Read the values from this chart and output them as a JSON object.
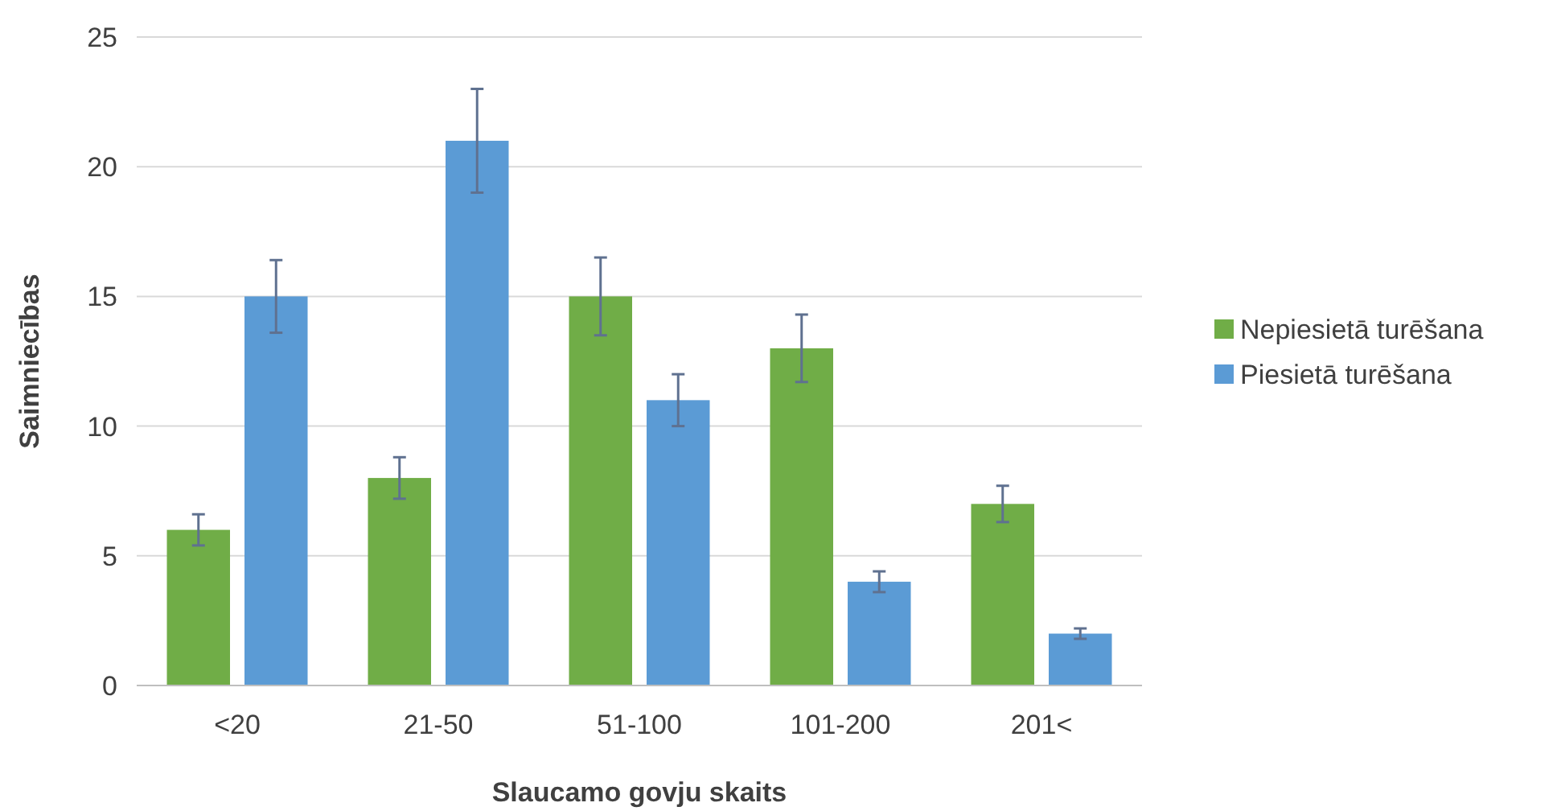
{
  "chart_data": {
    "type": "bar",
    "xlabel": "Slaucamo govju skaits",
    "ylabel": "Saimniecības",
    "categories": [
      "<20",
      "21-50",
      "51-100",
      "101-200",
      "201<"
    ],
    "series": [
      {
        "name": "Nepiesietā turēšana",
        "color": "#70ad47",
        "values": [
          6,
          8,
          15,
          13,
          7
        ],
        "errors": [
          0.6,
          0.8,
          1.5,
          1.3,
          0.7
        ]
      },
      {
        "name": "Piesietā turēšana",
        "color": "#5b9bd5",
        "values": [
          15,
          21,
          11,
          4,
          2
        ],
        "errors": [
          1.4,
          2,
          1,
          0.4,
          0.2
        ]
      }
    ],
    "ylim": [
      0,
      25
    ],
    "yticks": [
      0,
      5,
      10,
      15,
      20,
      25
    ],
    "grid": "y",
    "legend": "right"
  }
}
